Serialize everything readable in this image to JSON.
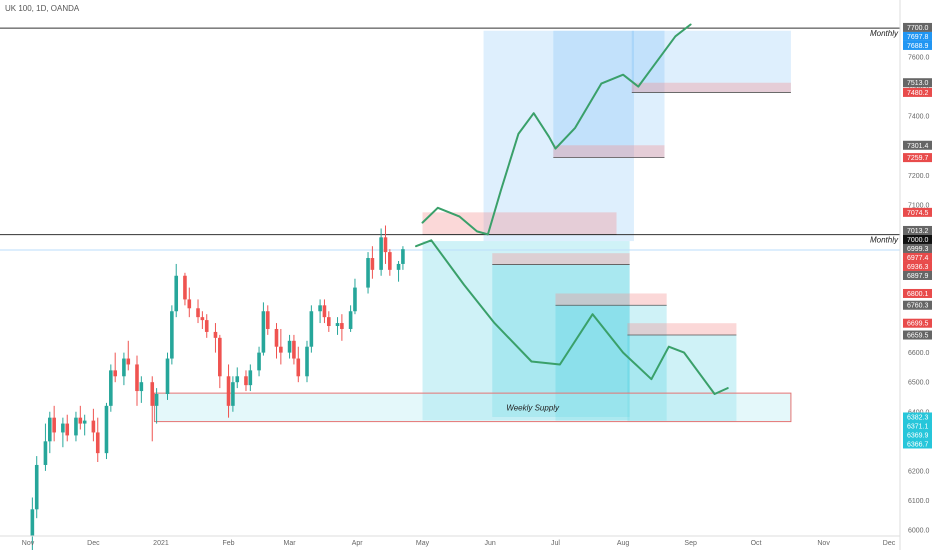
{
  "header": {
    "title": "UK 100, 1D, OANDA"
  },
  "chart_data": {
    "type": "candlestick",
    "symbol": "UK 100",
    "interval": "1D",
    "source": "OANDA",
    "ylim": [
      6000,
      7720
    ],
    "y_ticks": [
      6000,
      6100,
      6200,
      6300,
      6400,
      6500,
      6600,
      6700,
      6800,
      6900,
      7000,
      7100,
      7200,
      7300,
      7400,
      7500,
      7600
    ],
    "x_ticks": [
      {
        "label": "Nov",
        "date": "2020-11-01"
      },
      {
        "label": "Dec",
        "date": "2020-12-01"
      },
      {
        "label": "2021",
        "date": "2021-01-01"
      },
      {
        "label": "Feb",
        "date": "2021-02-01"
      },
      {
        "label": "Mar",
        "date": "2021-03-01"
      },
      {
        "label": "Apr",
        "date": "2021-04-01"
      },
      {
        "label": "May",
        "date": "2021-05-01"
      },
      {
        "label": "Jun",
        "date": "2021-06-01"
      },
      {
        "label": "Jul",
        "date": "2021-07-01"
      },
      {
        "label": "Aug",
        "date": "2021-08-01"
      },
      {
        "label": "Sep",
        "date": "2021-09-01"
      },
      {
        "label": "Oct",
        "date": "2021-10-01"
      },
      {
        "label": "Nov",
        "date": "2021-11-01"
      },
      {
        "label": "Dec",
        "date": "2021-12-01"
      }
    ],
    "candles": [
      [
        "2020-11-03",
        5980,
        6110,
        5930,
        6070
      ],
      [
        "2020-11-05",
        6070,
        6250,
        6040,
        6220
      ],
      [
        "2020-11-09",
        6220,
        6360,
        6200,
        6300
      ],
      [
        "2020-11-11",
        6300,
        6400,
        6260,
        6380
      ],
      [
        "2020-11-13",
        6380,
        6420,
        6300,
        6330
      ],
      [
        "2020-11-17",
        6330,
        6380,
        6280,
        6360
      ],
      [
        "2020-11-19",
        6360,
        6390,
        6300,
        6320
      ],
      [
        "2020-11-23",
        6320,
        6400,
        6300,
        6380
      ],
      [
        "2020-11-25",
        6380,
        6420,
        6340,
        6360
      ],
      [
        "2020-11-27",
        6360,
        6390,
        6320,
        6370
      ],
      [
        "2020-12-01",
        6370,
        6410,
        6300,
        6330
      ],
      [
        "2020-12-03",
        6330,
        6380,
        6230,
        6260
      ],
      [
        "2020-12-07",
        6260,
        6430,
        6240,
        6420
      ],
      [
        "2020-12-09",
        6420,
        6560,
        6400,
        6540
      ],
      [
        "2020-12-11",
        6540,
        6600,
        6500,
        6520
      ],
      [
        "2020-12-15",
        6520,
        6600,
        6490,
        6580
      ],
      [
        "2020-12-17",
        6580,
        6640,
        6540,
        6560
      ],
      [
        "2020-12-21",
        6560,
        6590,
        6420,
        6470
      ],
      [
        "2020-12-23",
        6470,
        6520,
        6430,
        6500
      ],
      [
        "2020-12-28",
        6500,
        6520,
        6300,
        6420
      ],
      [
        "2020-12-30",
        6420,
        6480,
        6360,
        6460
      ],
      [
        "2021-01-04",
        6460,
        6600,
        6440,
        6580
      ],
      [
        "2021-01-06",
        6580,
        6760,
        6560,
        6740
      ],
      [
        "2021-01-08",
        6740,
        6900,
        6720,
        6860
      ],
      [
        "2021-01-12",
        6860,
        6870,
        6760,
        6780
      ],
      [
        "2021-01-14",
        6780,
        6820,
        6720,
        6750
      ],
      [
        "2021-01-18",
        6750,
        6780,
        6700,
        6720
      ],
      [
        "2021-01-20",
        6720,
        6740,
        6680,
        6710
      ],
      [
        "2021-01-22",
        6710,
        6730,
        6650,
        6670
      ],
      [
        "2021-01-26",
        6670,
        6700,
        6600,
        6650
      ],
      [
        "2021-01-28",
        6650,
        6660,
        6480,
        6520
      ],
      [
        "2021-02-01",
        6520,
        6560,
        6380,
        6420
      ],
      [
        "2021-02-03",
        6420,
        6520,
        6400,
        6500
      ],
      [
        "2021-02-05",
        6500,
        6550,
        6480,
        6520
      ],
      [
        "2021-02-09",
        6520,
        6540,
        6470,
        6490
      ],
      [
        "2021-02-11",
        6490,
        6560,
        6470,
        6540
      ],
      [
        "2021-02-15",
        6540,
        6620,
        6520,
        6600
      ],
      [
        "2021-02-17",
        6600,
        6770,
        6590,
        6740
      ],
      [
        "2021-02-19",
        6740,
        6760,
        6660,
        6680
      ],
      [
        "2021-02-23",
        6680,
        6700,
        6580,
        6620
      ],
      [
        "2021-02-25",
        6620,
        6680,
        6560,
        6600
      ],
      [
        "2021-03-01",
        6600,
        6660,
        6580,
        6640
      ],
      [
        "2021-03-03",
        6640,
        6660,
        6560,
        6580
      ],
      [
        "2021-03-05",
        6580,
        6620,
        6500,
        6520
      ],
      [
        "2021-03-09",
        6520,
        6640,
        6500,
        6620
      ],
      [
        "2021-03-11",
        6620,
        6760,
        6600,
        6740
      ],
      [
        "2021-03-15",
        6740,
        6780,
        6700,
        6760
      ],
      [
        "2021-03-17",
        6760,
        6780,
        6700,
        6720
      ],
      [
        "2021-03-19",
        6720,
        6740,
        6670,
        6690
      ],
      [
        "2021-03-23",
        6690,
        6720,
        6660,
        6700
      ],
      [
        "2021-03-25",
        6700,
        6730,
        6640,
        6680
      ],
      [
        "2021-03-29",
        6680,
        6760,
        6670,
        6740
      ],
      [
        "2021-03-31",
        6740,
        6850,
        6730,
        6820
      ],
      [
        "2021-04-06",
        6820,
        6940,
        6800,
        6920
      ],
      [
        "2021-04-08",
        6920,
        6960,
        6850,
        6880
      ],
      [
        "2021-04-12",
        6880,
        7020,
        6860,
        6990
      ],
      [
        "2021-04-14",
        6990,
        7030,
        6900,
        6940
      ],
      [
        "2021-04-16",
        6940,
        6950,
        6860,
        6880
      ],
      [
        "2021-04-20",
        6880,
        6910,
        6840,
        6900
      ],
      [
        "2021-04-22",
        6900,
        6960,
        6880,
        6950
      ]
    ],
    "zones": [
      {
        "label": "Weekly Supply",
        "from": "2020-12-29",
        "to": "2021-10-17",
        "low": 6366.7,
        "high": 6463
      },
      {
        "label": "",
        "from": "2021-05-01",
        "to": "2021-07-29",
        "low": 6999.3,
        "high": 7074.5
      },
      {
        "label": "",
        "from": "2021-06-02",
        "to": "2021-08-04",
        "low": 6897.9,
        "high": 6936.3
      },
      {
        "label": "",
        "from": "2021-07-01",
        "to": "2021-08-21",
        "low": 6760.3,
        "high": 6800.1
      },
      {
        "label": "",
        "from": "2021-08-03",
        "to": "2021-09-22",
        "low": 6659.5,
        "high": 6699.5
      },
      {
        "label": "",
        "from": "2021-06-30",
        "to": "2021-08-20",
        "low": 7259.7,
        "high": 7301.4
      },
      {
        "label": "",
        "from": "2021-08-05",
        "to": "2021-10-17",
        "low": 7480.2,
        "high": 7513.0
      }
    ],
    "projection_boxes": [
      {
        "direction": "long",
        "from": "2021-05-29",
        "to": "2021-08-06",
        "top": 7688.9,
        "bottom": 6977.4,
        "entry": 7000.0
      },
      {
        "direction": "long",
        "from": "2021-06-30",
        "to": "2021-08-20",
        "top": 7688.9,
        "bottom": 7259.7,
        "entry": 7301.4
      },
      {
        "direction": "long",
        "from": "2021-08-05",
        "to": "2021-10-17",
        "top": 7688.9,
        "bottom": 7480.2,
        "entry": 7513.0
      },
      {
        "direction": "short",
        "from": "2021-05-01",
        "to": "2021-08-04",
        "top": 6977.4,
        "bottom": 6371.1,
        "entry": 6999.3
      },
      {
        "direction": "short",
        "from": "2021-06-02",
        "to": "2021-08-04",
        "top": 6897.9,
        "bottom": 6382.3,
        "entry": 6897.9
      },
      {
        "direction": "short",
        "from": "2021-07-01",
        "to": "2021-08-21",
        "top": 6760.3,
        "bottom": 6369.9,
        "entry": 6760.3
      },
      {
        "direction": "short",
        "from": "2021-08-03",
        "to": "2021-09-22",
        "top": 6659.5,
        "bottom": 6366.7,
        "entry": 6659.5
      }
    ],
    "horizontal_lines": [
      {
        "label": "Monthly",
        "value": 7697.8
      },
      {
        "label": "Monthly",
        "value": 6999.3
      }
    ],
    "paths": [
      {
        "color": "#3aa06a",
        "points": [
          [
            "2021-05-01",
            7040
          ],
          [
            "2021-05-08",
            7090
          ],
          [
            "2021-05-18",
            7060
          ],
          [
            "2021-05-26",
            7010
          ],
          [
            "2021-05-31",
            7000
          ],
          [
            "2021-06-06",
            7150
          ],
          [
            "2021-06-14",
            7340
          ],
          [
            "2021-06-21",
            7410
          ],
          [
            "2021-06-28",
            7330
          ],
          [
            "2021-07-01",
            7290
          ],
          [
            "2021-07-10",
            7360
          ],
          [
            "2021-07-22",
            7510
          ],
          [
            "2021-08-01",
            7540
          ],
          [
            "2021-08-08",
            7500
          ],
          [
            "2021-08-14",
            7560
          ],
          [
            "2021-08-25",
            7670
          ],
          [
            "2021-09-01",
            7710
          ]
        ]
      },
      {
        "color": "#3aa06a",
        "points": [
          [
            "2021-04-28",
            6960
          ],
          [
            "2021-05-05",
            6980
          ],
          [
            "2021-05-20",
            6830
          ],
          [
            "2021-06-03",
            6700
          ],
          [
            "2021-06-20",
            6570
          ],
          [
            "2021-07-03",
            6560
          ],
          [
            "2021-07-18",
            6730
          ],
          [
            "2021-08-01",
            6600
          ],
          [
            "2021-08-14",
            6510
          ],
          [
            "2021-08-22",
            6620
          ],
          [
            "2021-08-29",
            6600
          ],
          [
            "2021-09-12",
            6460
          ],
          [
            "2021-09-18",
            6480
          ]
        ]
      }
    ],
    "price_tags": [
      {
        "value": 7700.0,
        "color": "#666666"
      },
      {
        "value": 7697.8,
        "color": "#2196f3"
      },
      {
        "value": 7688.9,
        "color": "#2196f3"
      },
      {
        "value": 7513.0,
        "color": "#666666"
      },
      {
        "value": 7480.2,
        "color": "#e84b4b"
      },
      {
        "value": 7301.4,
        "color": "#666666"
      },
      {
        "value": 7259.7,
        "color": "#e84b4b"
      },
      {
        "value": 7074.5,
        "color": "#e84b4b"
      },
      {
        "value": 7013.2,
        "color": "#666666"
      },
      {
        "value": 7000.0,
        "color": "#111111"
      },
      {
        "value": 6999.3,
        "color": "#666666"
      },
      {
        "value": 6977.4,
        "color": "#e84b4b"
      },
      {
        "value": 6936.3,
        "color": "#e84b4b"
      },
      {
        "value": 6897.9,
        "color": "#666666"
      },
      {
        "value": 6800.1,
        "color": "#e84b4b"
      },
      {
        "value": 6760.3,
        "color": "#666666"
      },
      {
        "value": 6699.5,
        "color": "#e84b4b"
      },
      {
        "value": 6659.5,
        "color": "#666666"
      },
      {
        "value": 6382.3,
        "color": "#26c6da"
      },
      {
        "value": 6371.1,
        "color": "#26c6da"
      },
      {
        "value": 6369.9,
        "color": "#26c6da"
      },
      {
        "value": 6366.7,
        "color": "#26c6da"
      }
    ],
    "colors": {
      "up": "#26a69a",
      "down": "#ef5350",
      "path": "#3aa06a"
    }
  }
}
